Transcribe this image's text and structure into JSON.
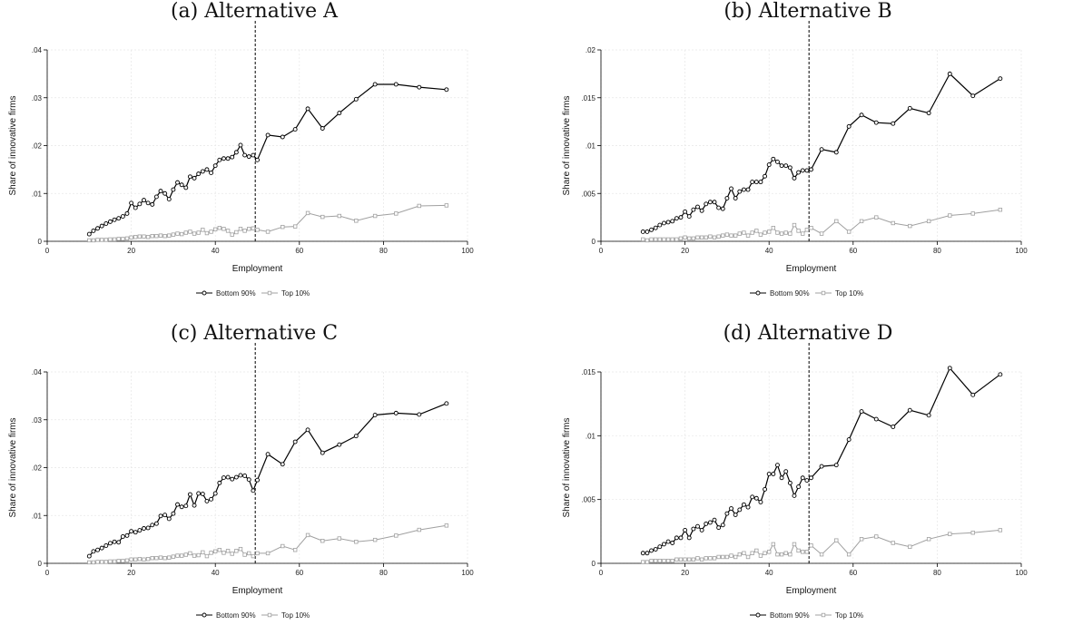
{
  "chart_data": [
    {
      "panel": "a",
      "type": "line",
      "title": "(a) Alternative A",
      "xlabel": "Employment",
      "ylabel": "Share of innovative firms",
      "xlim": [
        0,
        100
      ],
      "ylim": [
        0,
        0.04
      ],
      "xticks": [
        0,
        20,
        40,
        60,
        80,
        100
      ],
      "xtick_labels": [
        "0",
        "20",
        "40",
        "60",
        "80",
        "100"
      ],
      "yticks": [
        0,
        0.01,
        0.02,
        0.03,
        0.04
      ],
      "ytick_labels": [
        "0",
        ".01",
        ".02",
        ".03",
        ".04"
      ],
      "vline_x": 49.5,
      "grid": true,
      "legend_position": "bottom",
      "series": [
        {
          "name": "Bottom 90%",
          "color": "#000000",
          "marker": "circle",
          "x": [
            10,
            11,
            12,
            13,
            14,
            15,
            16,
            17,
            18,
            19,
            20,
            21,
            22,
            23,
            24,
            25,
            26,
            27,
            28,
            29,
            30,
            31,
            32,
            33,
            34,
            35,
            36,
            37,
            38,
            39,
            40,
            41,
            42,
            43,
            44,
            45,
            46,
            47,
            48,
            49,
            50,
            52.5,
            56,
            59,
            62,
            65.5,
            69.5,
            73.5,
            78,
            83,
            88.5,
            95
          ],
          "values": [
            0.0015,
            0.0022,
            0.0027,
            0.0032,
            0.0037,
            0.0041,
            0.0045,
            0.0048,
            0.0052,
            0.0058,
            0.008,
            0.007,
            0.0078,
            0.0086,
            0.008,
            0.0077,
            0.0093,
            0.0105,
            0.01,
            0.0088,
            0.0108,
            0.0123,
            0.0118,
            0.0112,
            0.0135,
            0.0132,
            0.0141,
            0.0146,
            0.015,
            0.0143,
            0.0158,
            0.017,
            0.0173,
            0.0173,
            0.0176,
            0.0186,
            0.0201,
            0.018,
            0.0177,
            0.018,
            0.017,
            0.0222,
            0.0218,
            0.0234,
            0.0277,
            0.0236,
            0.0268,
            0.0297,
            0.0328,
            0.0328,
            0.0322,
            0.0317
          ]
        },
        {
          "name": "Top 10%",
          "color": "#a0a0a0",
          "marker": "square",
          "x": [
            10,
            11,
            12,
            13,
            14,
            15,
            16,
            17,
            18,
            19,
            20,
            21,
            22,
            23,
            24,
            25,
            26,
            27,
            28,
            29,
            30,
            31,
            32,
            33,
            34,
            35,
            36,
            37,
            38,
            39,
            40,
            41,
            42,
            43,
            44,
            45,
            46,
            47,
            48,
            49,
            50,
            52.5,
            56,
            59,
            62,
            65.5,
            69.5,
            73.5,
            78,
            83,
            88.5,
            95
          ],
          "values": [
            0.0002,
            0.0002,
            0.0003,
            0.0003,
            0.0003,
            0.0004,
            0.0004,
            0.0005,
            0.0005,
            0.0006,
            0.0008,
            0.0009,
            0.001,
            0.001,
            0.0009,
            0.0011,
            0.0011,
            0.0012,
            0.0011,
            0.0012,
            0.0014,
            0.0016,
            0.0015,
            0.0018,
            0.002,
            0.0016,
            0.0018,
            0.0024,
            0.0017,
            0.002,
            0.0025,
            0.0028,
            0.0026,
            0.0022,
            0.0014,
            0.0019,
            0.0026,
            0.0022,
            0.0026,
            0.0027,
            0.0024,
            0.002,
            0.003,
            0.0031,
            0.0059,
            0.0051,
            0.0053,
            0.0043,
            0.0053,
            0.0058,
            0.0074,
            0.0075
          ]
        }
      ]
    },
    {
      "panel": "b",
      "type": "line",
      "title": "(b) Alternative B",
      "xlabel": "Employment",
      "ylabel": "Share of innovative firms",
      "xlim": [
        0,
        100
      ],
      "ylim": [
        0,
        0.02
      ],
      "xticks": [
        0,
        20,
        40,
        60,
        80,
        100
      ],
      "xtick_labels": [
        "0",
        "20",
        "40",
        "60",
        "80",
        "100"
      ],
      "yticks": [
        0,
        0.005,
        0.01,
        0.015,
        0.02
      ],
      "ytick_labels": [
        "0",
        ".005",
        ".01",
        ".015",
        ".02"
      ],
      "vline_x": 49.5,
      "grid": true,
      "legend_position": "bottom",
      "series": [
        {
          "name": "Bottom 90%",
          "color": "#000000",
          "marker": "circle",
          "x": [
            10,
            11,
            12,
            13,
            14,
            15,
            16,
            17,
            18,
            19,
            20,
            21,
            22,
            23,
            24,
            25,
            26,
            27,
            28,
            29,
            30,
            31,
            32,
            33,
            34,
            35,
            36,
            37,
            38,
            39,
            40,
            41,
            42,
            43,
            44,
            45,
            46,
            47,
            48,
            49,
            50,
            52.5,
            56,
            59,
            62,
            65.5,
            69.5,
            73.5,
            78,
            83,
            88.5,
            95
          ],
          "values": [
            0.001,
            0.001,
            0.0012,
            0.0014,
            0.0017,
            0.0019,
            0.002,
            0.0021,
            0.0024,
            0.0025,
            0.0031,
            0.0026,
            0.0033,
            0.0036,
            0.0032,
            0.0039,
            0.0041,
            0.0041,
            0.0035,
            0.0034,
            0.0045,
            0.0055,
            0.0045,
            0.0052,
            0.0054,
            0.0054,
            0.0062,
            0.0062,
            0.0062,
            0.0068,
            0.008,
            0.0086,
            0.0083,
            0.0079,
            0.0079,
            0.0077,
            0.0066,
            0.0072,
            0.0074,
            0.0074,
            0.0075,
            0.0096,
            0.0093,
            0.012,
            0.0132,
            0.0124,
            0.0123,
            0.0139,
            0.0134,
            0.0175,
            0.0152,
            0.017
          ]
        },
        {
          "name": "Top 10%",
          "color": "#a0a0a0",
          "marker": "square",
          "x": [
            10,
            11,
            12,
            13,
            14,
            15,
            16,
            17,
            18,
            19,
            20,
            21,
            22,
            23,
            24,
            25,
            26,
            27,
            28,
            29,
            30,
            31,
            32,
            33,
            34,
            35,
            36,
            37,
            38,
            39,
            40,
            41,
            42,
            43,
            44,
            45,
            46,
            47,
            48,
            49,
            50,
            52.5,
            56,
            59,
            62,
            65.5,
            69.5,
            73.5,
            78,
            83,
            88.5,
            95
          ],
          "values": [
            0.0002,
            0.0001,
            0.0002,
            0.0002,
            0.0002,
            0.0002,
            0.0002,
            0.0002,
            0.0002,
            0.0003,
            0.0004,
            0.0003,
            0.0003,
            0.0004,
            0.0004,
            0.0004,
            0.0005,
            0.0004,
            0.0005,
            0.0006,
            0.0007,
            0.0006,
            0.0006,
            0.0008,
            0.0009,
            0.0006,
            0.0009,
            0.0011,
            0.0007,
            0.0009,
            0.001,
            0.0014,
            0.0009,
            0.0008,
            0.0009,
            0.0008,
            0.0017,
            0.0011,
            0.0008,
            0.0012,
            0.0014,
            0.0008,
            0.0021,
            0.001,
            0.0021,
            0.0025,
            0.0019,
            0.0016,
            0.0021,
            0.0027,
            0.0029,
            0.0033
          ]
        }
      ]
    },
    {
      "panel": "c",
      "type": "line",
      "title": "(c) Alternative C",
      "xlabel": "Employment",
      "ylabel": "Share of innovative firms",
      "xlim": [
        0,
        100
      ],
      "ylim": [
        0,
        0.04
      ],
      "xticks": [
        0,
        20,
        40,
        60,
        80,
        100
      ],
      "xtick_labels": [
        "0",
        "20",
        "40",
        "60",
        "80",
        "100"
      ],
      "yticks": [
        0,
        0.01,
        0.02,
        0.03,
        0.04
      ],
      "ytick_labels": [
        "0",
        ".01",
        ".02",
        ".03",
        ".04"
      ],
      "vline_x": 49.5,
      "grid": true,
      "legend_position": "bottom",
      "series": [
        {
          "name": "Bottom 90%",
          "color": "#000000",
          "marker": "circle",
          "x": [
            10,
            11,
            12,
            13,
            14,
            15,
            16,
            17,
            18,
            19,
            20,
            21,
            22,
            23,
            24,
            25,
            26,
            27,
            28,
            29,
            30,
            31,
            32,
            33,
            34,
            35,
            36,
            37,
            38,
            39,
            40,
            41,
            42,
            43,
            44,
            45,
            46,
            47,
            48,
            49,
            50,
            52.5,
            56,
            59,
            62,
            65.5,
            69.5,
            73.5,
            78,
            83,
            88.5,
            95
          ],
          "values": [
            0.0015,
            0.0025,
            0.0028,
            0.0032,
            0.0037,
            0.0042,
            0.0045,
            0.0044,
            0.0056,
            0.0058,
            0.0067,
            0.0065,
            0.0069,
            0.0073,
            0.0074,
            0.008,
            0.0083,
            0.0099,
            0.0101,
            0.0093,
            0.0104,
            0.0123,
            0.0118,
            0.012,
            0.0144,
            0.0121,
            0.0146,
            0.0145,
            0.013,
            0.0134,
            0.0146,
            0.0168,
            0.0179,
            0.018,
            0.0176,
            0.018,
            0.0184,
            0.0183,
            0.0175,
            0.0152,
            0.0174,
            0.0228,
            0.0207,
            0.0254,
            0.0279,
            0.0231,
            0.0248,
            0.0266,
            0.031,
            0.0314,
            0.0311,
            0.0334
          ]
        },
        {
          "name": "Top 10%",
          "color": "#a0a0a0",
          "marker": "square",
          "x": [
            10,
            11,
            12,
            13,
            14,
            15,
            16,
            17,
            18,
            19,
            20,
            21,
            22,
            23,
            24,
            25,
            26,
            27,
            28,
            29,
            30,
            31,
            32,
            33,
            34,
            35,
            36,
            37,
            38,
            39,
            40,
            41,
            42,
            43,
            44,
            45,
            46,
            47,
            48,
            49,
            50,
            52.5,
            56,
            59,
            62,
            65.5,
            69.5,
            73.5,
            78,
            83,
            88.5,
            95
          ],
          "values": [
            0.0002,
            0.0002,
            0.0003,
            0.0003,
            0.0003,
            0.0004,
            0.0004,
            0.0005,
            0.0005,
            0.0006,
            0.0008,
            0.0008,
            0.0009,
            0.0008,
            0.0009,
            0.0011,
            0.0011,
            0.0012,
            0.0011,
            0.0012,
            0.0014,
            0.0016,
            0.0016,
            0.0018,
            0.0021,
            0.0016,
            0.0017,
            0.0023,
            0.0015,
            0.0022,
            0.0025,
            0.0028,
            0.0022,
            0.0026,
            0.002,
            0.0026,
            0.003,
            0.0018,
            0.0021,
            0.0015,
            0.0021,
            0.0021,
            0.0036,
            0.0028,
            0.0059,
            0.0047,
            0.0052,
            0.0045,
            0.0049,
            0.0058,
            0.007,
            0.0079
          ]
        }
      ]
    },
    {
      "panel": "d",
      "type": "line",
      "title": "(d) Alternative D",
      "xlabel": "Employment",
      "ylabel": "Share of innovative firms",
      "xlim": [
        0,
        100
      ],
      "ylim": [
        0,
        0.015
      ],
      "xticks": [
        0,
        20,
        40,
        60,
        80,
        100
      ],
      "xtick_labels": [
        "0",
        "20",
        "40",
        "60",
        "80",
        "100"
      ],
      "yticks": [
        0,
        0.005,
        0.01,
        0.015
      ],
      "ytick_labels": [
        "0",
        ".005",
        ".01",
        ".015"
      ],
      "vline_x": 49.5,
      "grid": true,
      "legend_position": "bottom",
      "series": [
        {
          "name": "Bottom 90%",
          "color": "#000000",
          "marker": "circle",
          "x": [
            10,
            11,
            12,
            13,
            14,
            15,
            16,
            17,
            18,
            19,
            20,
            21,
            22,
            23,
            24,
            25,
            26,
            27,
            28,
            29,
            30,
            31,
            32,
            33,
            34,
            35,
            36,
            37,
            38,
            39,
            40,
            41,
            42,
            43,
            44,
            45,
            46,
            47,
            48,
            49,
            50,
            52.5,
            56,
            59,
            62,
            65.5,
            69.5,
            73.5,
            78,
            83,
            88.5,
            95
          ],
          "values": [
            0.0008,
            0.0008,
            0.001,
            0.0011,
            0.0013,
            0.0015,
            0.0017,
            0.0016,
            0.002,
            0.002,
            0.0026,
            0.002,
            0.0027,
            0.0029,
            0.0026,
            0.0031,
            0.0032,
            0.0034,
            0.0028,
            0.003,
            0.0039,
            0.0043,
            0.0038,
            0.0042,
            0.0046,
            0.0044,
            0.0052,
            0.0051,
            0.0048,
            0.0058,
            0.007,
            0.007,
            0.0077,
            0.0067,
            0.0072,
            0.0063,
            0.0053,
            0.006,
            0.0067,
            0.0065,
            0.0067,
            0.0076,
            0.0077,
            0.0097,
            0.0119,
            0.0113,
            0.0107,
            0.012,
            0.0116,
            0.0153,
            0.0132,
            0.0148
          ]
        },
        {
          "name": "Top 10%",
          "color": "#a0a0a0",
          "marker": "square",
          "x": [
            10,
            11,
            12,
            13,
            14,
            15,
            16,
            17,
            18,
            19,
            20,
            21,
            22,
            23,
            24,
            25,
            26,
            27,
            28,
            29,
            30,
            31,
            32,
            33,
            34,
            35,
            36,
            37,
            38,
            39,
            40,
            41,
            42,
            43,
            44,
            45,
            46,
            47,
            48,
            49,
            50,
            52.5,
            56,
            59,
            62,
            65.5,
            69.5,
            73.5,
            78,
            83,
            88.5,
            95
          ],
          "values": [
            0.0001,
            0.0001,
            0.0002,
            0.0002,
            0.0002,
            0.0002,
            0.0002,
            0.0002,
            0.0003,
            0.0003,
            0.0003,
            0.0003,
            0.0003,
            0.0004,
            0.0003,
            0.0004,
            0.0004,
            0.0004,
            0.0005,
            0.0005,
            0.0005,
            0.0006,
            0.0005,
            0.0007,
            0.0008,
            0.0005,
            0.0008,
            0.001,
            0.0006,
            0.0008,
            0.0009,
            0.0015,
            0.0007,
            0.0007,
            0.0008,
            0.0007,
            0.0015,
            0.001,
            0.0009,
            0.0009,
            0.0014,
            0.0007,
            0.0018,
            0.0007,
            0.0019,
            0.0021,
            0.0016,
            0.0013,
            0.0019,
            0.0023,
            0.0024,
            0.0026
          ]
        }
      ]
    }
  ]
}
